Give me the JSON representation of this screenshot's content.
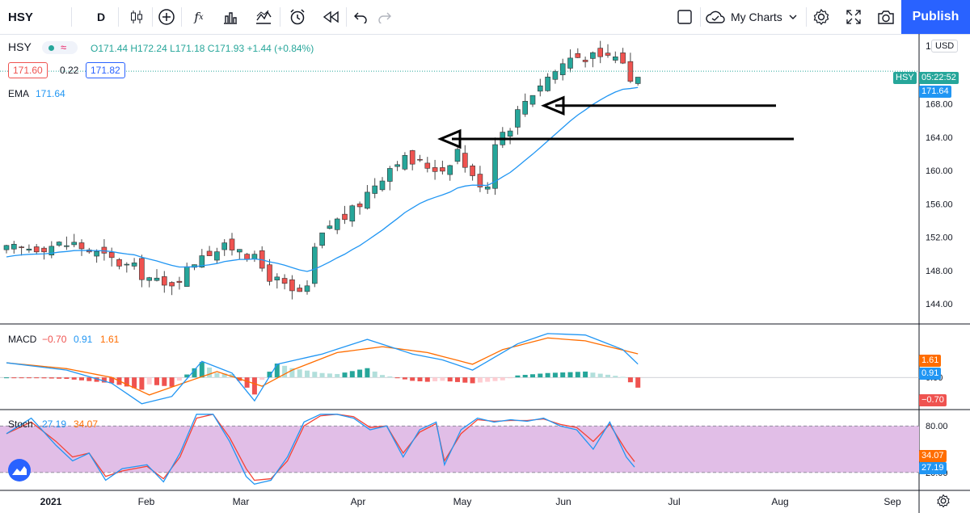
{
  "toolbar": {
    "symbol": "HSY",
    "interval": "D",
    "my_charts": "My Charts",
    "publish": "Publish"
  },
  "legend": {
    "symbol": "HSY",
    "ohlc": "O171.44 H172.24 L171.18 C171.93 +1.44 (+0.84%)",
    "bid": "171.60",
    "spread": "0.22",
    "ask": "171.82",
    "ema_label": "EMA",
    "ema_value": "171.64",
    "currency": "USD",
    "price_tag": "05:22:52",
    "price_tag_symbol": "HSY",
    "price_top_clipped": "1"
  },
  "macd_legend": {
    "label": "MACD",
    "hist": "−0.70",
    "macd": "0.91",
    "signal": "1.61"
  },
  "stoch_legend": {
    "label": "Stoch",
    "k": "27.19",
    "d": "34.07"
  },
  "colors": {
    "up": "#26a69a",
    "down": "#ef5350",
    "ema": "#2196f3",
    "macd": "#2196f3",
    "signal": "#ff6d00",
    "stoch_k": "#2196f3",
    "stoch_d": "#f44336",
    "stoch_band": "#e1bee7"
  },
  "chart_data": [
    {
      "type": "candlestick",
      "title": "HSY",
      "x_ticks": [
        "2021",
        "Feb",
        "Mar",
        "Apr",
        "May",
        "Jun",
        "Jul",
        "Aug",
        "Sep"
      ],
      "y_ticks": [
        "144.00",
        "148.00",
        "152.00",
        "156.00",
        "160.00",
        "164.00",
        "168.00"
      ],
      "ylim": [
        141.6,
        176.4
      ],
      "anchors": [
        [
          0,
          150.4
        ],
        [
          5,
          151.0
        ],
        [
          9,
          151.2
        ],
        [
          13,
          149.6
        ],
        [
          17,
          148.2
        ],
        [
          21,
          146.0
        ],
        [
          24,
          148.0
        ],
        [
          26,
          150.3
        ],
        [
          29,
          150.6
        ],
        [
          31,
          151.0
        ],
        [
          35,
          147.4
        ],
        [
          38,
          145.2
        ],
        [
          40,
          145.5
        ],
        [
          41,
          150.5
        ],
        [
          43,
          153.5
        ],
        [
          46,
          155.0
        ],
        [
          49,
          158.5
        ],
        [
          52,
          161.5
        ],
        [
          55,
          160.8
        ],
        [
          58,
          160.2
        ],
        [
          60,
          162.5
        ],
        [
          62,
          159.0
        ],
        [
          64,
          158.4
        ],
        [
          65,
          163.8
        ],
        [
          67,
          165.5
        ],
        [
          69,
          168.5
        ],
        [
          71,
          170.5
        ],
        [
          73,
          172.0
        ],
        [
          75,
          173.6
        ],
        [
          77,
          173.8
        ],
        [
          79,
          173.2
        ],
        [
          80,
          173.8
        ],
        [
          82,
          173.3
        ],
        [
          83,
          170.5
        ],
        [
          84,
          171.9
        ]
      ],
      "ema_overlay": {
        "name": "EMA",
        "last": 171.64
      },
      "annotations": [
        {
          "type": "arrow",
          "points_to": 167.8
        },
        {
          "type": "arrow",
          "points_to": 163.8
        }
      ]
    },
    {
      "type": "macd",
      "name": "MACD",
      "ylim": [
        -2.2,
        3.6
      ],
      "y_ticks": [
        "0.00"
      ],
      "macd_anchors": [
        [
          0,
          1.0
        ],
        [
          8,
          0.5
        ],
        [
          14,
          -0.4
        ],
        [
          18,
          -1.8
        ],
        [
          22,
          -1.3
        ],
        [
          26,
          1.1
        ],
        [
          30,
          0.3
        ],
        [
          33,
          -1.6
        ],
        [
          36,
          0.9
        ],
        [
          42,
          1.6
        ],
        [
          48,
          2.6
        ],
        [
          54,
          1.6
        ],
        [
          58,
          1.2
        ],
        [
          62,
          0.5
        ],
        [
          64,
          1.1
        ],
        [
          68,
          2.3
        ],
        [
          72,
          3.0
        ],
        [
          77,
          2.9
        ],
        [
          82,
          1.9
        ],
        [
          84,
          0.91
        ]
      ],
      "signal_anchors": [
        [
          0,
          1.0
        ],
        [
          8,
          0.6
        ],
        [
          14,
          0.0
        ],
        [
          19,
          -1.2
        ],
        [
          24,
          -0.3
        ],
        [
          28,
          0.4
        ],
        [
          34,
          -0.6
        ],
        [
          38,
          0.5
        ],
        [
          44,
          1.7
        ],
        [
          50,
          2.1
        ],
        [
          56,
          1.7
        ],
        [
          62,
          0.9
        ],
        [
          66,
          1.9
        ],
        [
          72,
          2.7
        ],
        [
          77,
          2.5
        ],
        [
          84,
          1.61
        ]
      ],
      "last": {
        "macd": 0.91,
        "signal": 1.61,
        "histogram": -0.7
      }
    },
    {
      "type": "stochastic",
      "name": "Stoch",
      "ylim": [
        -3,
        100
      ],
      "y_ticks": [
        "80.00",
        "20.00"
      ],
      "k_anchors": [
        [
          0,
          70
        ],
        [
          3,
          90
        ],
        [
          6,
          55
        ],
        [
          8,
          35
        ],
        [
          10,
          45
        ],
        [
          12,
          10
        ],
        [
          14,
          25
        ],
        [
          17,
          30
        ],
        [
          19,
          8
        ],
        [
          21,
          45
        ],
        [
          23,
          95
        ],
        [
          25,
          95
        ],
        [
          27,
          60
        ],
        [
          29,
          15
        ],
        [
          30,
          5
        ],
        [
          32,
          10
        ],
        [
          34,
          40
        ],
        [
          36,
          85
        ],
        [
          38,
          95
        ],
        [
          40,
          95
        ],
        [
          42,
          90
        ],
        [
          44,
          75
        ],
        [
          46,
          80
        ],
        [
          48,
          40
        ],
        [
          50,
          75
        ],
        [
          52,
          85
        ],
        [
          53,
          30
        ],
        [
          55,
          75
        ],
        [
          57,
          90
        ],
        [
          59,
          85
        ],
        [
          61,
          88
        ],
        [
          63,
          86
        ],
        [
          65,
          90
        ],
        [
          67,
          80
        ],
        [
          69,
          75
        ],
        [
          71,
          50
        ],
        [
          73,
          85
        ],
        [
          75,
          40
        ],
        [
          76,
          27
        ]
      ],
      "d_anchors": [
        [
          0,
          70
        ],
        [
          3,
          85
        ],
        [
          6,
          60
        ],
        [
          8,
          40
        ],
        [
          10,
          45
        ],
        [
          12,
          15
        ],
        [
          14,
          22
        ],
        [
          17,
          28
        ],
        [
          19,
          12
        ],
        [
          21,
          40
        ],
        [
          23,
          90
        ],
        [
          25,
          95
        ],
        [
          27,
          65
        ],
        [
          29,
          25
        ],
        [
          30,
          10
        ],
        [
          32,
          12
        ],
        [
          34,
          35
        ],
        [
          36,
          80
        ],
        [
          38,
          93
        ],
        [
          40,
          95
        ],
        [
          42,
          92
        ],
        [
          44,
          78
        ],
        [
          46,
          80
        ],
        [
          48,
          45
        ],
        [
          50,
          72
        ],
        [
          52,
          83
        ],
        [
          53,
          35
        ],
        [
          55,
          70
        ],
        [
          57,
          88
        ],
        [
          59,
          86
        ],
        [
          61,
          87
        ],
        [
          63,
          87
        ],
        [
          65,
          89
        ],
        [
          67,
          82
        ],
        [
          69,
          78
        ],
        [
          71,
          60
        ],
        [
          73,
          82
        ],
        [
          75,
          48
        ],
        [
          76,
          34
        ]
      ],
      "last": {
        "k": 27.19,
        "d": 34.07
      }
    }
  ]
}
